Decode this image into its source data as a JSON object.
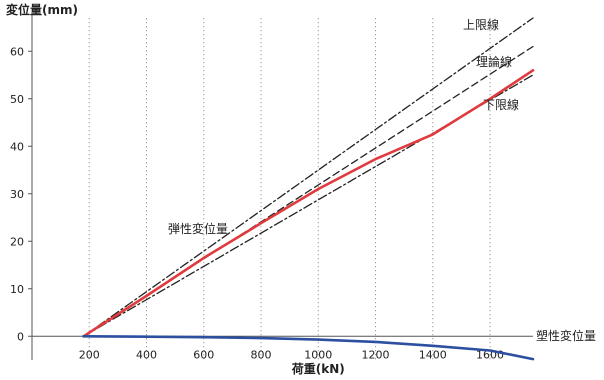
{
  "chart_data": {
    "type": "line",
    "ylabel": "変位量(mm)",
    "xlabel": "荷重(kN)",
    "xlim": [
      0,
      1750
    ],
    "ylim": [
      -5,
      67
    ],
    "x_ticks": [
      200,
      400,
      600,
      800,
      1000,
      1200,
      1400,
      1600
    ],
    "y_ticks": [
      0,
      10,
      20,
      30,
      40,
      50,
      60
    ],
    "grid": {
      "vertical": "dotted",
      "horizontal": "none"
    },
    "series": [
      {
        "name": "上限線",
        "style": "dash-dot",
        "color": "#222222",
        "x": [
          180,
          1750
        ],
        "y": [
          0,
          67
        ]
      },
      {
        "name": "理論線",
        "style": "dashed",
        "color": "#222222",
        "x": [
          180,
          1750
        ],
        "y": [
          0,
          61
        ]
      },
      {
        "name": "下限線",
        "style": "dash-dot",
        "color": "#222222",
        "x": [
          180,
          1750
        ],
        "y": [
          0,
          55
        ]
      },
      {
        "name": "弾性変位量",
        "style": "solid",
        "color": "#e03a3e",
        "x": [
          180,
          400,
          600,
          800,
          1000,
          1200,
          1400,
          1600,
          1750
        ],
        "y": [
          0,
          8.5,
          16.5,
          23.8,
          31.0,
          37.3,
          42.5,
          50.0,
          56.0
        ]
      },
      {
        "name": "塑性変位量",
        "style": "solid",
        "color": "#2c4fa0",
        "x": [
          180,
          400,
          600,
          800,
          1000,
          1200,
          1400,
          1600,
          1750
        ],
        "y": [
          0,
          -0.1,
          -0.2,
          -0.4,
          -0.7,
          -1.2,
          -2.0,
          -3.0,
          -4.8
        ]
      }
    ]
  }
}
